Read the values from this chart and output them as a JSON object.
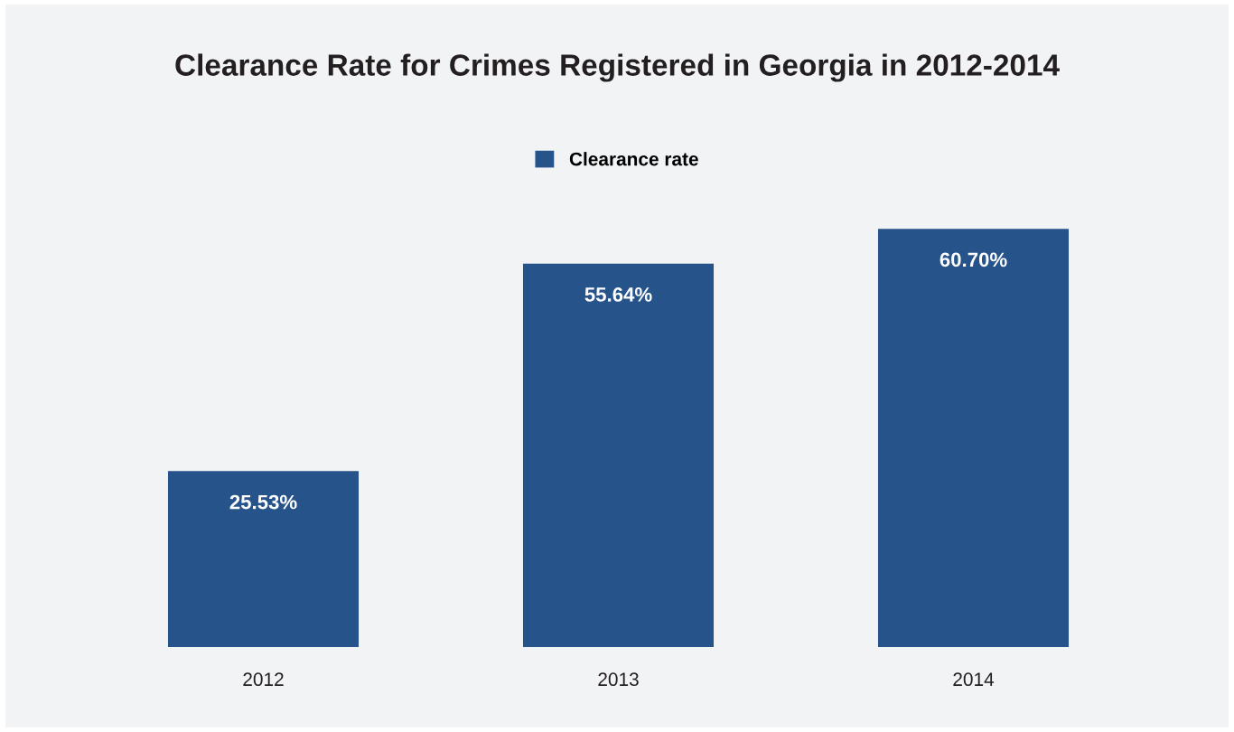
{
  "chart_data": {
    "type": "bar",
    "title": "Clearance Rate for Crimes Registered in Georgia in 2012-2014",
    "categories": [
      "2012",
      "2013",
      "2014"
    ],
    "series": [
      {
        "name": "Clearance rate",
        "color": "#26538a",
        "values": [
          25.53,
          55.64,
          60.7
        ],
        "value_labels": [
          "25.53%",
          "55.64%",
          "60.70%"
        ]
      }
    ],
    "legend": "top"
  }
}
